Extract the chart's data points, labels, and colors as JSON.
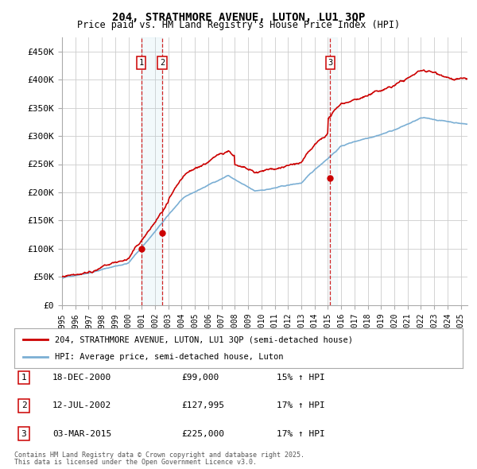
{
  "title": "204, STRATHMORE AVENUE, LUTON, LU1 3QP",
  "subtitle": "Price paid vs. HM Land Registry's House Price Index (HPI)",
  "background_color": "#ffffff",
  "plot_bg_color": "#ffffff",
  "grid_color": "#cccccc",
  "red_line_color": "#cc0000",
  "blue_line_color": "#7bafd4",
  "ylim": [
    0,
    475000
  ],
  "yticks": [
    0,
    50000,
    100000,
    150000,
    200000,
    250000,
    300000,
    350000,
    400000,
    450000
  ],
  "ytick_labels": [
    "£0",
    "£50K",
    "£100K",
    "£150K",
    "£200K",
    "£250K",
    "£300K",
    "£350K",
    "£400K",
    "£450K"
  ],
  "xlim_start": 1995,
  "xlim_end": 2025.5,
  "sales": [
    {
      "label": "1",
      "date_num": 2000.96,
      "price": 99000,
      "pct": "15%",
      "date_str": "18-DEC-2000"
    },
    {
      "label": "2",
      "date_num": 2002.54,
      "price": 127995,
      "pct": "17%",
      "date_str": "12-JUL-2002"
    },
    {
      "label": "3",
      "date_num": 2015.17,
      "price": 225000,
      "pct": "17%",
      "date_str": "03-MAR-2015"
    }
  ],
  "legend_line1": "204, STRATHMORE AVENUE, LUTON, LU1 3QP (semi-detached house)",
  "legend_line2": "HPI: Average price, semi-detached house, Luton",
  "footer1": "Contains HM Land Registry data © Crown copyright and database right 2025.",
  "footer2": "This data is licensed under the Open Government Licence v3.0."
}
